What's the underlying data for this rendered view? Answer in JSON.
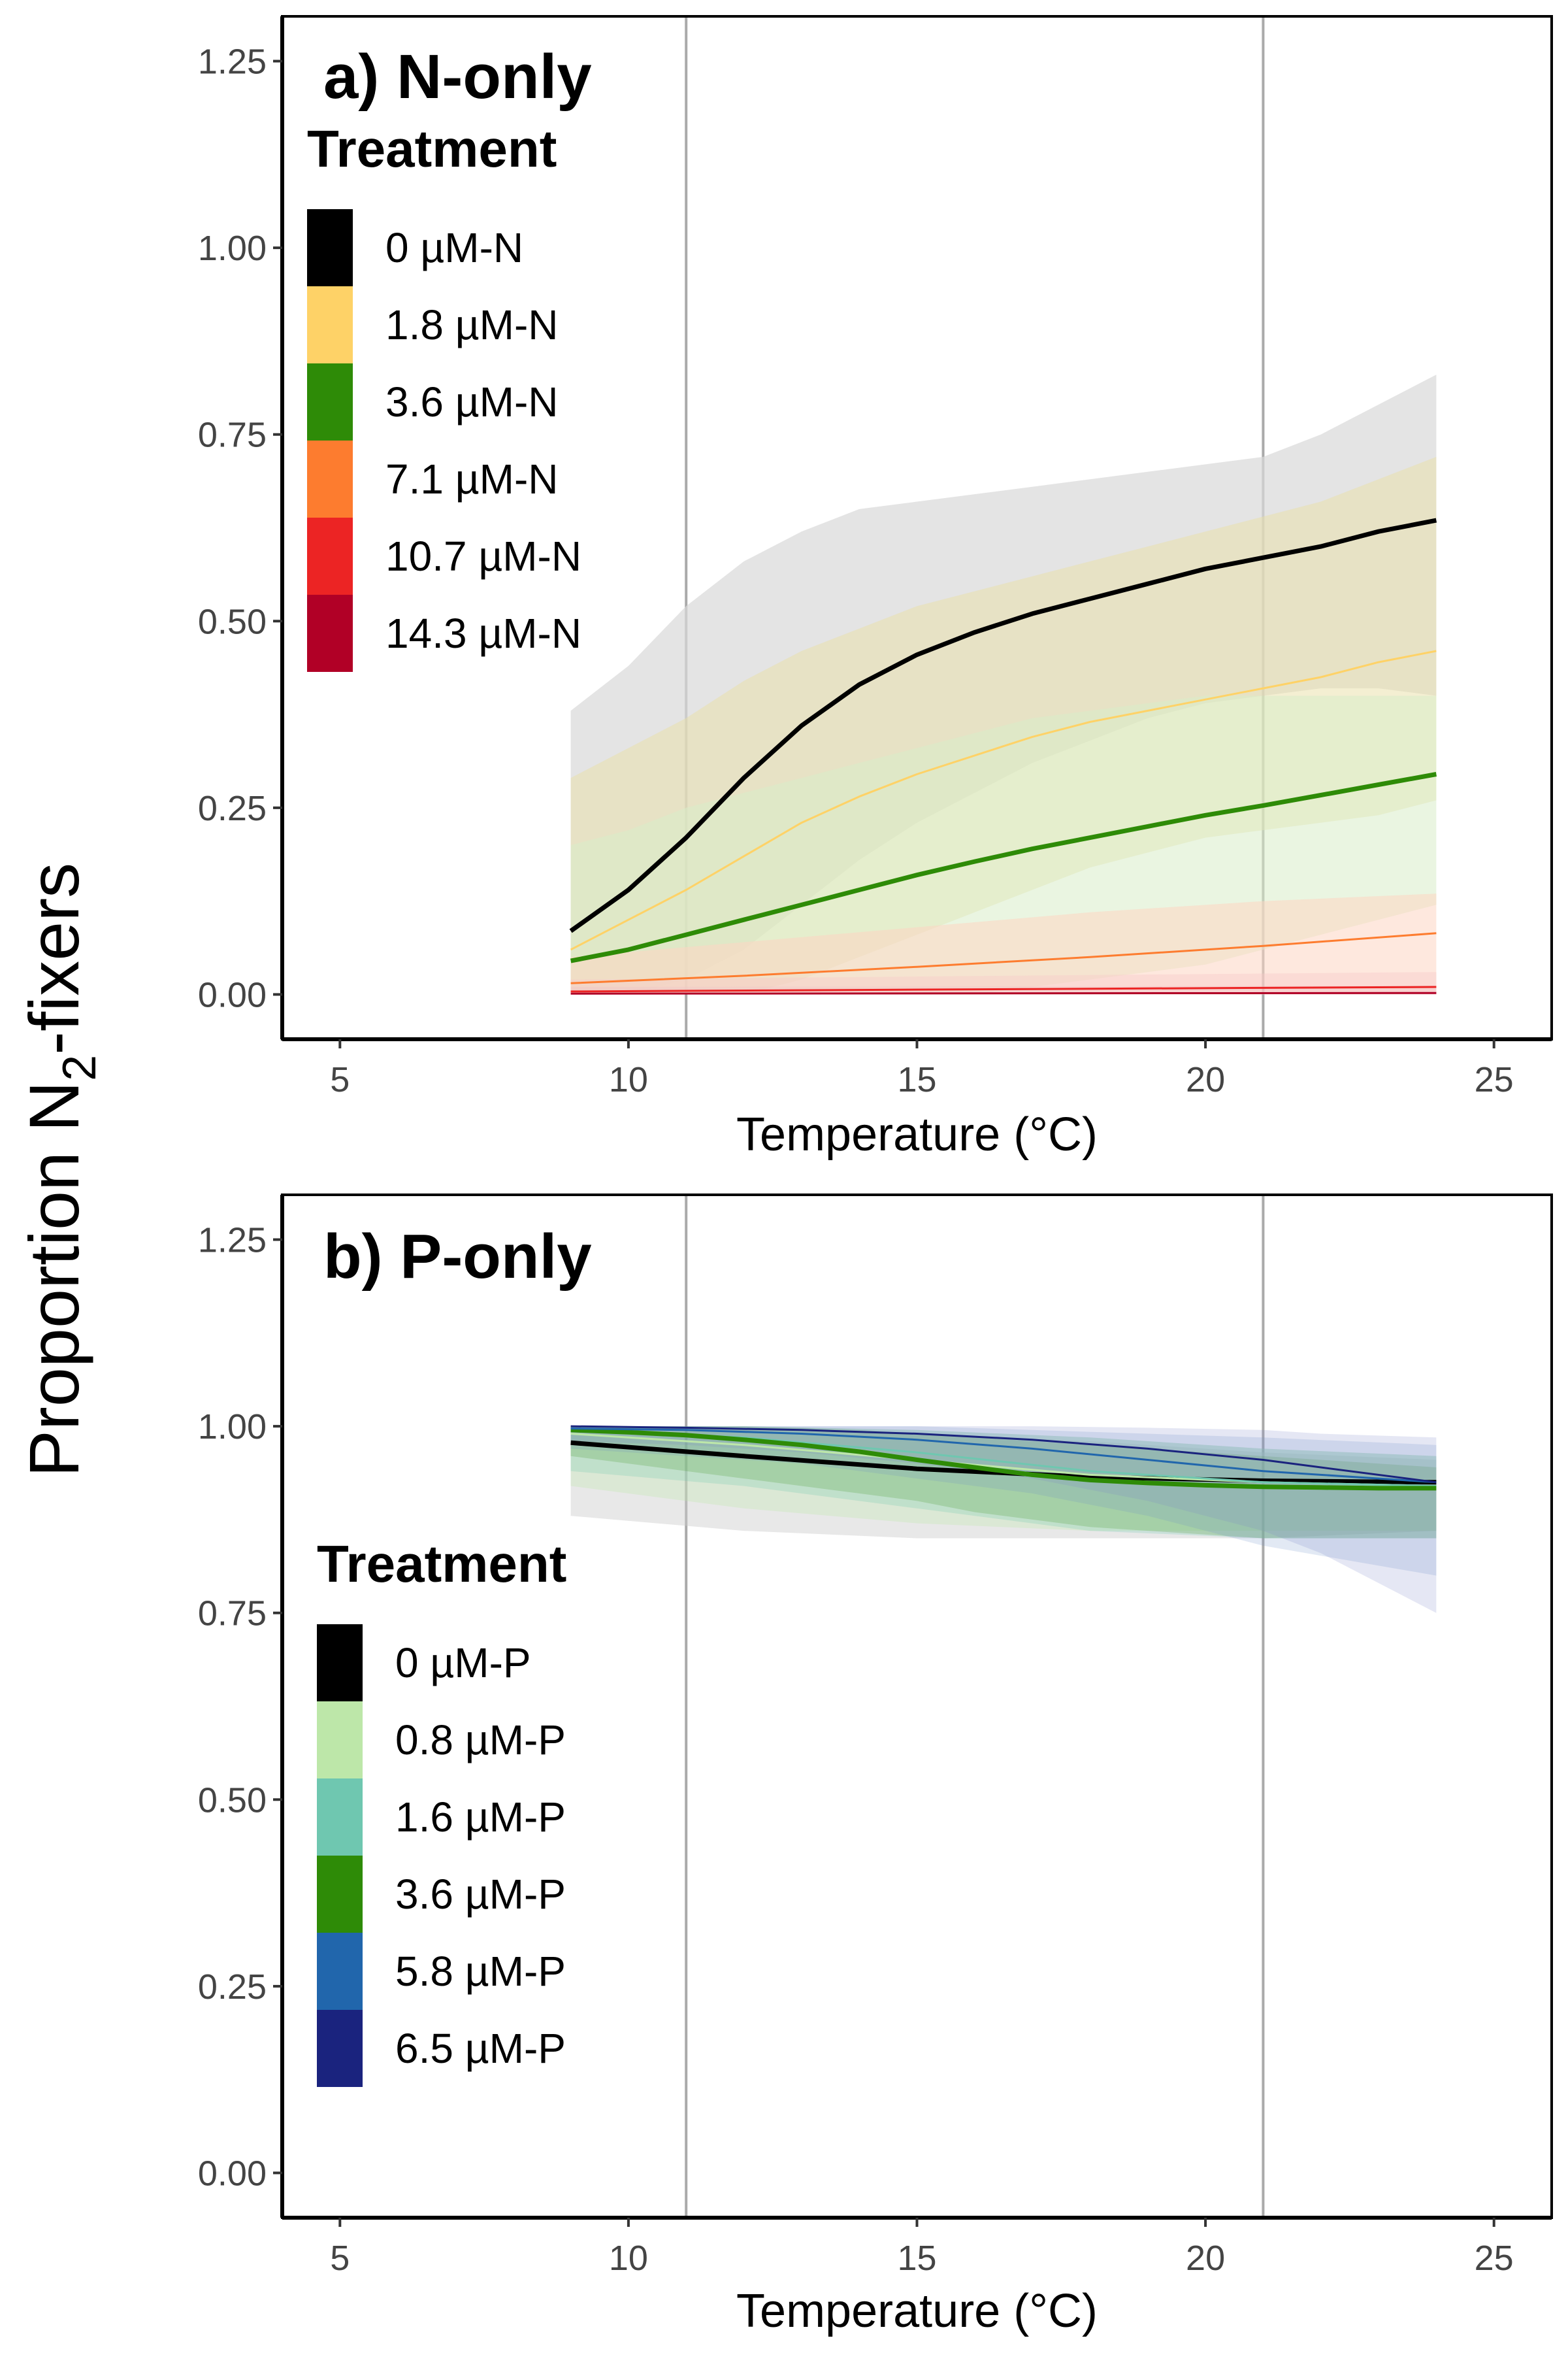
{
  "figure": {
    "ylabel": "Proportion N",
    "ylabel_sub": "2",
    "ylabel_suffix": "-fixers"
  },
  "chart_data": [
    {
      "type": "line",
      "title": "a) N-only",
      "xlabel": "Temperature (°C)",
      "xlim": [
        4,
        26
      ],
      "ylim": [
        -0.06,
        1.31
      ],
      "xticks": [
        5,
        10,
        15,
        20,
        25
      ],
      "yticks": [
        0,
        0.25,
        0.5,
        0.75,
        1,
        1.25
      ],
      "ytick_labels": [
        "0.00",
        "0.25",
        "0.50",
        "0.75",
        "1.00",
        "1.25"
      ],
      "vlines": [
        11,
        21
      ],
      "vline_color": "#aaaaaa",
      "grid": false,
      "legend": {
        "title": "Treatment",
        "placement": "top-left",
        "entries": [
          "0 µM-N",
          "1.8 µM-N",
          "3.6 µM-N",
          "7.1 µM-N",
          "10.7 µM-N",
          "14.3 µM-N"
        ],
        "colors": [
          "#000000",
          "#fed267",
          "#2e8b07",
          "#fd7c2f",
          "#ec2424",
          "#b10026"
        ]
      },
      "series": [
        {
          "color": "#000000",
          "line_width": 7,
          "ribbon_color": "#d9d9d9",
          "ribbon_opacity": 0.7,
          "x": [
            9,
            10,
            11,
            12,
            13,
            14,
            15,
            16,
            17,
            18,
            19,
            20,
            21,
            22,
            23,
            24
          ],
          "y": [
            0.085,
            0.14,
            0.21,
            0.29,
            0.36,
            0.415,
            0.455,
            0.485,
            0.51,
            0.53,
            0.55,
            0.57,
            0.585,
            0.6,
            0.62,
            0.635
          ],
          "lower": [
            0.0,
            0.0,
            0.02,
            0.06,
            0.12,
            0.18,
            0.23,
            0.27,
            0.31,
            0.34,
            0.37,
            0.39,
            0.4,
            0.41,
            0.41,
            0.4
          ],
          "upper": [
            0.38,
            0.44,
            0.52,
            0.58,
            0.62,
            0.65,
            0.66,
            0.67,
            0.68,
            0.69,
            0.7,
            0.71,
            0.72,
            0.75,
            0.79,
            0.83
          ]
        },
        {
          "color": "#fed267",
          "line_width": 3,
          "ribbon_color": "#e9dfa6",
          "ribbon_opacity": 0.5,
          "x": [
            9,
            10,
            11,
            12,
            13,
            14,
            15,
            16,
            17,
            18,
            19,
            20,
            21,
            22,
            23,
            24
          ],
          "y": [
            0.06,
            0.1,
            0.14,
            0.185,
            0.23,
            0.265,
            0.295,
            0.32,
            0.345,
            0.365,
            0.38,
            0.395,
            0.41,
            0.425,
            0.445,
            0.46
          ],
          "lower": [
            0.0,
            0.0,
            0.0,
            0.0,
            0.02,
            0.05,
            0.08,
            0.11,
            0.14,
            0.17,
            0.19,
            0.21,
            0.22,
            0.23,
            0.24,
            0.26
          ],
          "upper": [
            0.29,
            0.33,
            0.37,
            0.42,
            0.46,
            0.49,
            0.52,
            0.54,
            0.56,
            0.58,
            0.6,
            0.62,
            0.64,
            0.66,
            0.69,
            0.72
          ]
        },
        {
          "color": "#2e8b07",
          "line_width": 7,
          "ribbon_color": "#d8ecc9",
          "ribbon_opacity": 0.55,
          "x": [
            9,
            10,
            11,
            12,
            13,
            14,
            15,
            16,
            17,
            18,
            19,
            20,
            21,
            22,
            23,
            24
          ],
          "y": [
            0.045,
            0.06,
            0.08,
            0.1,
            0.12,
            0.14,
            0.16,
            0.178,
            0.195,
            0.21,
            0.225,
            0.24,
            0.253,
            0.267,
            0.281,
            0.295
          ],
          "lower": [
            0.0,
            0.0,
            0.0,
            0.0,
            0.0,
            0.0,
            0.0,
            0.0,
            0.01,
            0.02,
            0.03,
            0.04,
            0.06,
            0.08,
            0.1,
            0.12
          ],
          "upper": [
            0.2,
            0.22,
            0.25,
            0.27,
            0.29,
            0.31,
            0.33,
            0.35,
            0.37,
            0.38,
            0.39,
            0.4,
            0.4,
            0.4,
            0.4,
            0.4
          ]
        },
        {
          "color": "#fd7c2f",
          "line_width": 3,
          "ribbon_color": "#fdd6c2",
          "ribbon_opacity": 0.55,
          "x": [
            9,
            12,
            15,
            18,
            21,
            24
          ],
          "y": [
            0.015,
            0.025,
            0.037,
            0.05,
            0.065,
            0.082
          ],
          "lower": [
            0.0,
            0.0,
            0.0,
            0.0,
            0.0,
            0.0
          ],
          "upper": [
            0.05,
            0.07,
            0.09,
            0.11,
            0.125,
            0.135
          ]
        },
        {
          "color": "#ec2424",
          "line_width": 3,
          "ribbon_color": "#f8c8c8",
          "ribbon_opacity": 0.4,
          "x": [
            9,
            24
          ],
          "y": [
            0.004,
            0.01
          ],
          "lower": [
            0.0,
            0.0
          ],
          "upper": [
            0.02,
            0.03
          ]
        },
        {
          "color": "#b10026",
          "line_width": 3,
          "ribbon_color": "#f0c0c8",
          "ribbon_opacity": 0.3,
          "x": [
            9,
            24
          ],
          "y": [
            0.001,
            0.002
          ],
          "lower": [
            0.0,
            0.0
          ],
          "upper": [
            0.01,
            0.012
          ]
        }
      ]
    },
    {
      "type": "line",
      "title": "b) P-only",
      "xlabel": "Temperature (°C)",
      "xlim": [
        4,
        26
      ],
      "ylim": [
        -0.06,
        1.31
      ],
      "xticks": [
        5,
        10,
        15,
        20,
        25
      ],
      "yticks": [
        0,
        0.25,
        0.5,
        0.75,
        1,
        1.25
      ],
      "ytick_labels": [
        "0.00",
        "0.25",
        "0.50",
        "0.75",
        "1.00",
        "1.25"
      ],
      "vlines": [
        11,
        21
      ],
      "vline_color": "#aaaaaa",
      "grid": false,
      "legend": {
        "title": "Treatment",
        "placement": "middle-left",
        "entries": [
          "0 µM-P",
          "0.8 µM-P",
          "1.6 µM-P",
          "3.6 µM-P",
          "5.8 µM-P",
          "6.5 µM-P"
        ],
        "colors": [
          "#000000",
          "#bde7a9",
          "#6fc7b0",
          "#2e8b07",
          "#2166ac",
          "#1a237e"
        ]
      },
      "series": [
        {
          "color": "#000000",
          "line_width": 7,
          "ribbon_color": "#cccccc",
          "ribbon_opacity": 0.45,
          "x": [
            9,
            12,
            15,
            18,
            21,
            24
          ],
          "y": [
            0.978,
            0.96,
            0.943,
            0.932,
            0.927,
            0.925
          ],
          "lower": [
            0.88,
            0.86,
            0.85,
            0.85,
            0.85,
            0.86
          ],
          "upper": [
            1.0,
            0.995,
            0.99,
            0.98,
            0.965,
            0.955
          ]
        },
        {
          "color": "#bde7a9",
          "line_width": 3,
          "ribbon_color": "#bde7a9",
          "ribbon_opacity": 0.3,
          "x": [
            9,
            12,
            15,
            18,
            21,
            24
          ],
          "y": [
            0.99,
            0.975,
            0.955,
            0.935,
            0.925,
            0.92
          ],
          "lower": [
            0.92,
            0.89,
            0.87,
            0.86,
            0.86,
            0.86
          ],
          "upper": [
            1.0,
            1.0,
            0.995,
            0.985,
            0.97,
            0.96
          ]
        },
        {
          "color": "#6fc7b0",
          "line_width": 3,
          "ribbon_color": "#6fc7b0",
          "ribbon_opacity": 0.25,
          "x": [
            9,
            12,
            15,
            18,
            21,
            24
          ],
          "y": [
            0.995,
            0.985,
            0.965,
            0.94,
            0.925,
            0.92
          ],
          "lower": [
            0.94,
            0.92,
            0.89,
            0.86,
            0.85,
            0.85
          ],
          "upper": [
            1.0,
            1.0,
            0.995,
            0.985,
            0.97,
            0.96
          ]
        },
        {
          "color": "#2e8b07",
          "line_width": 7,
          "ribbon_color": "#2e8b07",
          "ribbon_opacity": 0.18,
          "x": [
            9,
            10,
            11,
            12,
            13,
            14,
            15,
            16,
            17,
            18,
            19,
            20,
            21,
            22,
            23,
            24
          ],
          "y": [
            0.995,
            0.992,
            0.988,
            0.982,
            0.975,
            0.966,
            0.955,
            0.945,
            0.935,
            0.928,
            0.924,
            0.921,
            0.919,
            0.918,
            0.917,
            0.917
          ],
          "lower": [
            0.96,
            0.95,
            0.94,
            0.93,
            0.92,
            0.91,
            0.9,
            0.885,
            0.875,
            0.865,
            0.86,
            0.855,
            0.85,
            0.85,
            0.85,
            0.85
          ],
          "upper": [
            1.0,
            1.0,
            1.0,
            1.0,
            0.998,
            0.995,
            0.99,
            0.985,
            0.98,
            0.975,
            0.97,
            0.965,
            0.96,
            0.955,
            0.95,
            0.945
          ]
        },
        {
          "color": "#2166ac",
          "line_width": 3,
          "ribbon_color": "#6d8fc7",
          "ribbon_opacity": 0.2,
          "x": [
            9,
            11,
            13,
            15,
            17,
            19,
            21,
            24
          ],
          "y": [
            0.997,
            0.995,
            0.99,
            0.982,
            0.97,
            0.955,
            0.94,
            0.925
          ],
          "lower": [
            0.97,
            0.96,
            0.95,
            0.93,
            0.91,
            0.88,
            0.84,
            0.8
          ],
          "upper": [
            1.0,
            1.0,
            1.0,
            1.0,
            0.995,
            0.99,
            0.985,
            0.975
          ]
        },
        {
          "color": "#1a237e",
          "line_width": 3,
          "ribbon_color": "#7b85c8",
          "ribbon_opacity": 0.2,
          "x": [
            9,
            11,
            13,
            15,
            17,
            19,
            21,
            22,
            24
          ],
          "y": [
            1.0,
            0.998,
            0.995,
            0.99,
            0.982,
            0.97,
            0.955,
            0.945,
            0.925
          ],
          "lower": [
            0.98,
            0.975,
            0.965,
            0.95,
            0.93,
            0.9,
            0.86,
            0.83,
            0.75
          ],
          "upper": [
            1.0,
            1.0,
            1.0,
            1.0,
            1.0,
            0.998,
            0.995,
            0.99,
            0.985
          ]
        }
      ]
    }
  ]
}
